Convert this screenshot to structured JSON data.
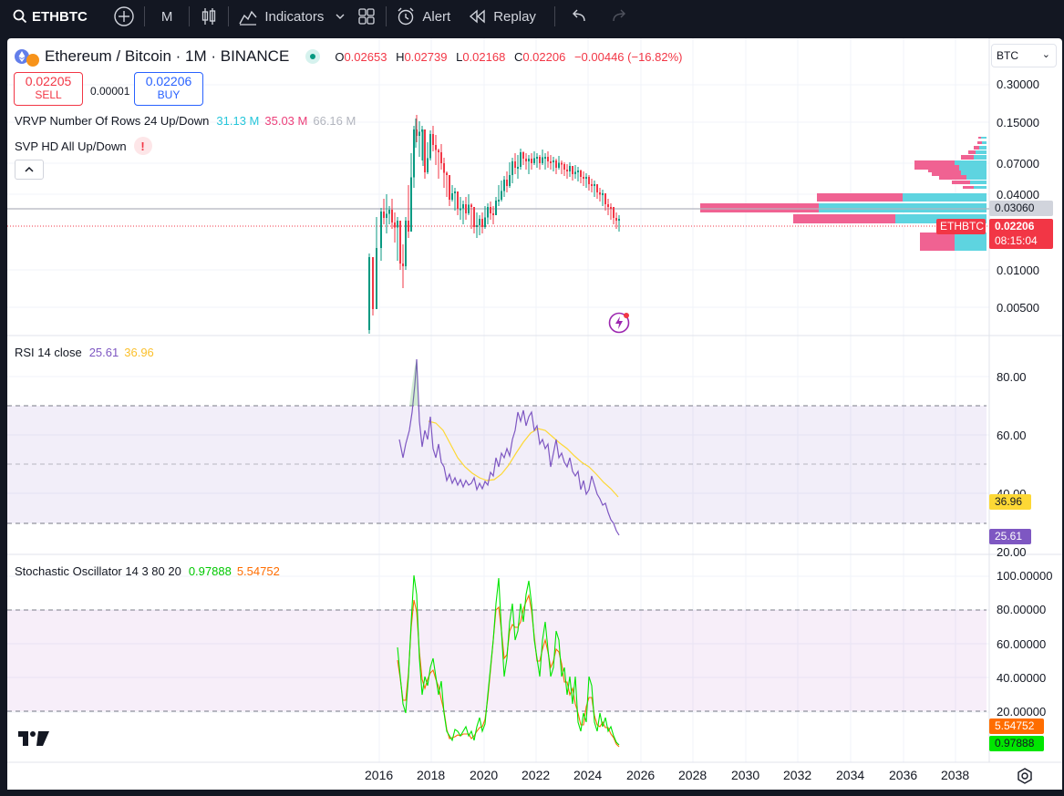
{
  "toolbar": {
    "symbol": "ETHBTC",
    "interval": "M",
    "indicators_label": "Indicators",
    "alert_label": "Alert",
    "replay_label": "Replay"
  },
  "legend": {
    "pair": "Ethereum / Bitcoin · 1M · BINANCE",
    "o_key": "O",
    "o_val": "0.02653",
    "h_key": "H",
    "h_val": "0.02739",
    "l_key": "L",
    "l_val": "0.02168",
    "c_key": "C",
    "c_val": "0.02206",
    "change": "−0.00446 (−16.82%)"
  },
  "trade": {
    "sell_price": "0.02205",
    "sell_label": "SELL",
    "spread": "0.00001",
    "buy_price": "0.02206",
    "buy_label": "BUY"
  },
  "indicators": {
    "vrvp_label": "VRVP Number Of Rows 24 Up/Down",
    "vrvp_up": "31.13 M",
    "vrvp_down": "35.03 M",
    "vrvp_total": "66.16 M",
    "svp_label": "SVP HD All Up/Down",
    "svp_warn": "!",
    "rsi_label": "RSI 14 close",
    "rsi_val": "25.61",
    "rsi_ma": "36.96",
    "stoch_label": "Stochastic Oscillator 14 3 80 20",
    "stoch_k": "0.97888",
    "stoch_d": "5.54752"
  },
  "currency": "BTC",
  "price_axis": [
    "0.30000",
    "0.15000",
    "0.07000",
    "0.04000",
    "0.01000",
    "0.00500"
  ],
  "price_tags": {
    "hline": "0.03060",
    "symbol": "ETHBTC",
    "last": "0.02206",
    "countdown": "08:15:04"
  },
  "rsi_axis": [
    "80.00",
    "60.00",
    "40.00",
    "20.00"
  ],
  "rsi_tags": {
    "ma": "36.96",
    "rsi": "25.61"
  },
  "stoch_axis": [
    "100.00000",
    "80.00000",
    "60.00000",
    "40.00000",
    "20.00000"
  ],
  "stoch_tags": {
    "d": "5.54752",
    "k": "0.97888"
  },
  "time_axis": [
    "2016",
    "2018",
    "2020",
    "2022",
    "2024",
    "2026",
    "2028",
    "2030",
    "2032",
    "2034",
    "2036",
    "2038"
  ],
  "colors": {
    "up": "#089981",
    "down": "#f23645",
    "rsi": "#7e57c2",
    "rsi_ma": "#fdd835",
    "stoch_k": "#00e600",
    "stoch_d": "#ff6d00",
    "vp_up": "#5ed4e0",
    "vp_down": "#f06292"
  }
}
